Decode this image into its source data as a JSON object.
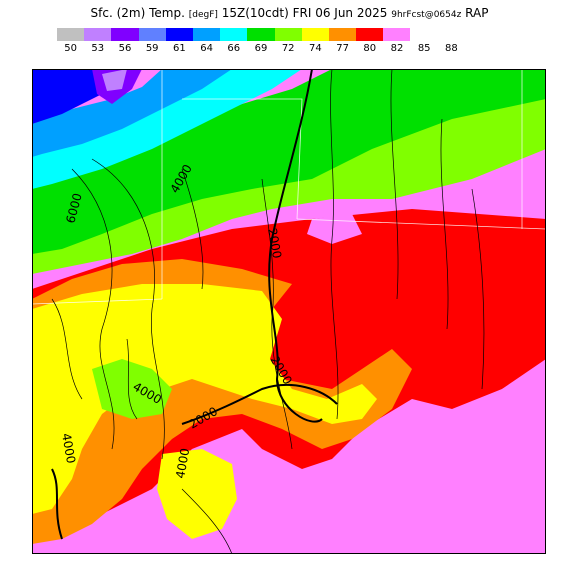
{
  "title": {
    "main": "Sfc. (2m) Temp.",
    "unit": "[degF]",
    "time": "15Z(10cdt)",
    "date": "FRI 06 Jun 2025",
    "fcst": "9hrFcst@0654z",
    "model": "RAP"
  },
  "legend": {
    "ticks": [
      "50",
      "53",
      "56",
      "59",
      "61",
      "64",
      "66",
      "69",
      "72",
      "74",
      "77",
      "80",
      "82",
      "85",
      "88"
    ],
    "colors": [
      "#c0c0c0",
      "#c080ff",
      "#8000ff",
      "#6080ff",
      "#0000ff",
      "#00a0ff",
      "#00ffff",
      "#00e000",
      "#80ff00",
      "#ffff00",
      "#ff9000",
      "#ff0000",
      "#ff80ff"
    ]
  },
  "map": {
    "contour_labels": [
      "4000",
      "6000",
      "2000",
      "2000",
      "4000",
      "2000",
      "4000",
      "4000"
    ]
  }
}
